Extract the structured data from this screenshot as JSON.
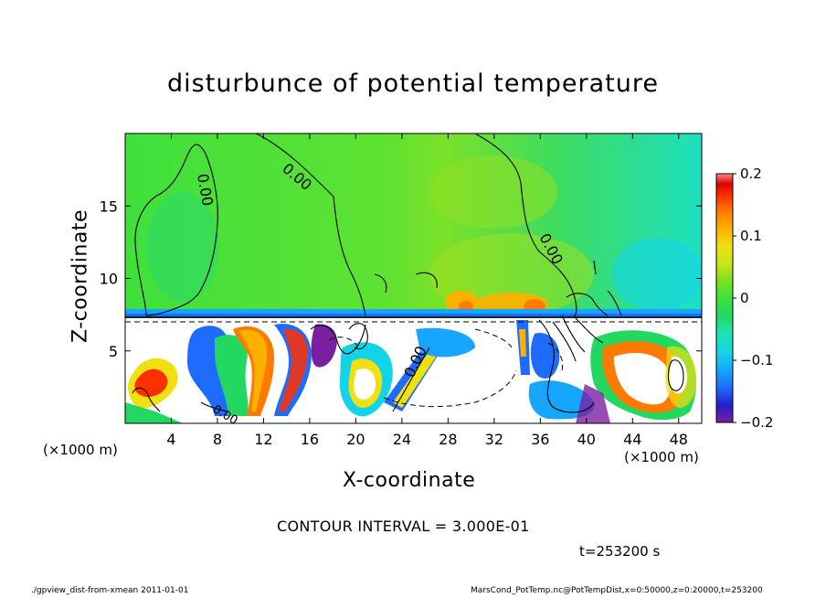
{
  "chart_data": {
    "type": "heatmap",
    "title": "disturbunce of potential temperature",
    "xlabel": "X-coordinate",
    "ylabel": "Z-coordinate",
    "x_unit": "(×1000 m)",
    "y_unit": "(×1000 m)",
    "xlim": [
      0,
      50
    ],
    "ylim": [
      0,
      20
    ],
    "x_ticks": [
      4,
      8,
      12,
      16,
      20,
      24,
      28,
      32,
      36,
      40,
      44,
      48
    ],
    "y_ticks": [
      5,
      10,
      15
    ],
    "colorbar": {
      "range": [
        -0.2,
        0.2
      ],
      "tick_values": [
        -0.2,
        -0.1,
        0,
        0.1,
        0.2
      ],
      "tick_labels": [
        "−0.2",
        "−0.1",
        "0",
        "0.1",
        "0.2"
      ],
      "colors": [
        "#7b1fa2",
        "#2020c8",
        "#1e6bff",
        "#16a6ff",
        "#12d4e8",
        "#1be6b0",
        "#22d860",
        "#3fe03c",
        "#7ee01e",
        "#c6e812",
        "#f0e010",
        "#ffb000",
        "#ff7a00",
        "#ff3000",
        "#e00000",
        "#ff8a8a"
      ]
    },
    "contour_labels": [
      "0.00",
      "0.00",
      "0.00",
      "0.00",
      "0.00"
    ],
    "contour_interval": "CONTOUR INTERVAL = 3.000E-01",
    "time_label": "t=253200 s"
  },
  "footer": {
    "left": "./gpview_dist-from-xmean  2011-01-01",
    "right": "MarsCond_PotTemp.nc@PotTempDist,x=0:50000,z=0:20000,t=253200"
  }
}
